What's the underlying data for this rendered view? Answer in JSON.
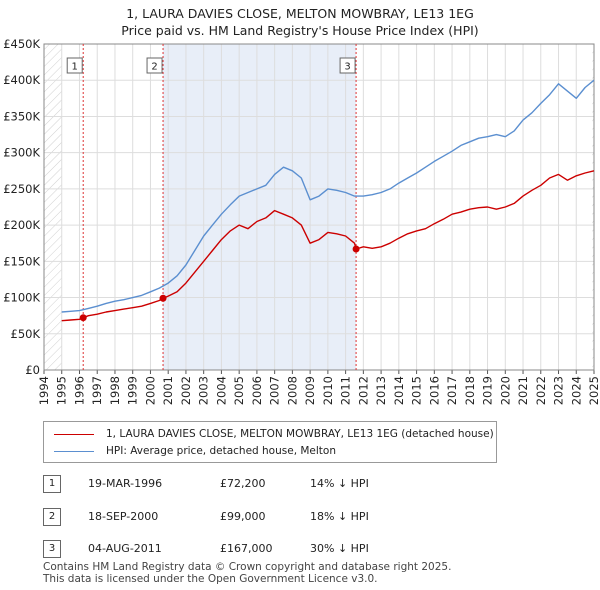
{
  "title_line1": "1, LAURA DAVIES CLOSE, MELTON MOWBRAY, LE13 1EG",
  "title_line2": "Price paid vs. HM Land Registry's House Price Index (HPI)",
  "chart_data": {
    "type": "line",
    "title": "1, LAURA DAVIES CLOSE, MELTON MOWBRAY, LE13 1EG — Price paid vs. HM Land Registry's House Price Index (HPI)",
    "xlabel": "",
    "ylabel": "",
    "xlim": [
      1994,
      2025
    ],
    "ylim": [
      0,
      450000
    ],
    "grid": true,
    "y_ticks": [
      0,
      50000,
      100000,
      150000,
      200000,
      250000,
      300000,
      350000,
      400000,
      450000
    ],
    "y_tick_labels": [
      "£0",
      "£50K",
      "£100K",
      "£150K",
      "£200K",
      "£250K",
      "£300K",
      "£350K",
      "£400K",
      "£450K"
    ],
    "x_ticks": [
      1994,
      1995,
      1996,
      1997,
      1998,
      1999,
      2000,
      2001,
      2002,
      2003,
      2004,
      2005,
      2006,
      2007,
      2008,
      2009,
      2010,
      2011,
      2012,
      2013,
      2014,
      2015,
      2016,
      2017,
      2018,
      2019,
      2020,
      2021,
      2022,
      2023,
      2024,
      2025
    ],
    "series": [
      {
        "name": "1, LAURA DAVIES CLOSE, MELTON MOWBRAY, LE13 1EG (detached house)",
        "color": "#cc0000",
        "x": [
          1995.0,
          1995.5,
          1996.0,
          1996.21,
          1996.5,
          1997.0,
          1997.5,
          1998.0,
          1998.5,
          1999.0,
          1999.5,
          2000.0,
          2000.5,
          2000.71,
          2001.0,
          2001.5,
          2002.0,
          2002.5,
          2003.0,
          2003.5,
          2004.0,
          2004.5,
          2005.0,
          2005.5,
          2006.0,
          2006.5,
          2007.0,
          2007.5,
          2008.0,
          2008.5,
          2009.0,
          2009.5,
          2010.0,
          2010.5,
          2011.0,
          2011.5,
          2011.59,
          2012.0,
          2012.5,
          2013.0,
          2013.5,
          2014.0,
          2014.5,
          2015.0,
          2015.5,
          2016.0,
          2016.5,
          2017.0,
          2017.5,
          2018.0,
          2018.5,
          2019.0,
          2019.5,
          2020.0,
          2020.5,
          2021.0,
          2021.5,
          2022.0,
          2022.5,
          2023.0,
          2023.5,
          2024.0,
          2024.5,
          2025.0
        ],
        "values": [
          68000,
          69000,
          70000,
          72200,
          75000,
          77000,
          80000,
          82000,
          84000,
          86000,
          88000,
          92000,
          96000,
          99000,
          102000,
          108000,
          120000,
          135000,
          150000,
          165000,
          180000,
          192000,
          200000,
          195000,
          205000,
          210000,
          220000,
          215000,
          210000,
          200000,
          175000,
          180000,
          190000,
          188000,
          185000,
          175000,
          167000,
          170000,
          168000,
          170000,
          175000,
          182000,
          188000,
          192000,
          195000,
          202000,
          208000,
          215000,
          218000,
          222000,
          224000,
          225000,
          222000,
          225000,
          230000,
          240000,
          248000,
          255000,
          265000,
          270000,
          262000,
          268000,
          272000,
          275000
        ]
      },
      {
        "name": "HPI: Average price, detached house, Melton",
        "color": "#5b8fd0",
        "x": [
          1995.0,
          1995.5,
          1996.0,
          1996.5,
          1997.0,
          1997.5,
          1998.0,
          1998.5,
          1999.0,
          1999.5,
          2000.0,
          2000.5,
          2001.0,
          2001.5,
          2002.0,
          2002.5,
          2003.0,
          2003.5,
          2004.0,
          2004.5,
          2005.0,
          2005.5,
          2006.0,
          2006.5,
          2007.0,
          2007.5,
          2008.0,
          2008.5,
          2009.0,
          2009.5,
          2010.0,
          2010.5,
          2011.0,
          2011.5,
          2012.0,
          2012.5,
          2013.0,
          2013.5,
          2014.0,
          2014.5,
          2015.0,
          2015.5,
          2016.0,
          2016.5,
          2017.0,
          2017.5,
          2018.0,
          2018.5,
          2019.0,
          2019.5,
          2020.0,
          2020.5,
          2021.0,
          2021.5,
          2022.0,
          2022.5,
          2023.0,
          2023.5,
          2024.0,
          2024.5,
          2025.0
        ],
        "values": [
          80000,
          81000,
          82000,
          85000,
          88000,
          92000,
          95000,
          97000,
          100000,
          103000,
          108000,
          113000,
          120000,
          130000,
          145000,
          165000,
          185000,
          200000,
          215000,
          228000,
          240000,
          245000,
          250000,
          255000,
          270000,
          280000,
          275000,
          265000,
          235000,
          240000,
          250000,
          248000,
          245000,
          240000,
          240000,
          242000,
          245000,
          250000,
          258000,
          265000,
          272000,
          280000,
          288000,
          295000,
          302000,
          310000,
          315000,
          320000,
          322000,
          325000,
          322000,
          330000,
          345000,
          355000,
          368000,
          380000,
          395000,
          385000,
          375000,
          390000,
          400000
        ]
      }
    ],
    "transactions": [
      {
        "label": "1",
        "date": "19-MAR-1996",
        "x": 1996.21,
        "price": 72200,
        "price_text": "£72,200",
        "hpi_text": "14% ↓ HPI"
      },
      {
        "label": "2",
        "date": "18-SEP-2000",
        "x": 2000.71,
        "price": 99000,
        "price_text": "£99,000",
        "hpi_text": "18% ↓ HPI"
      },
      {
        "label": "3",
        "date": "04-AUG-2011",
        "x": 2011.59,
        "price": 167000,
        "price_text": "£167,000",
        "hpi_text": "30% ↓ HPI"
      }
    ]
  },
  "legend": {
    "property_label": "1, LAURA DAVIES CLOSE, MELTON MOWBRAY, LE13 1EG (detached house)",
    "hpi_label": "HPI: Average price, detached house, Melton"
  },
  "footer_line1": "Contains HM Land Registry data © Crown copyright and database right 2025.",
  "footer_line2": "This data is licensed under the Open Government Licence v3.0."
}
